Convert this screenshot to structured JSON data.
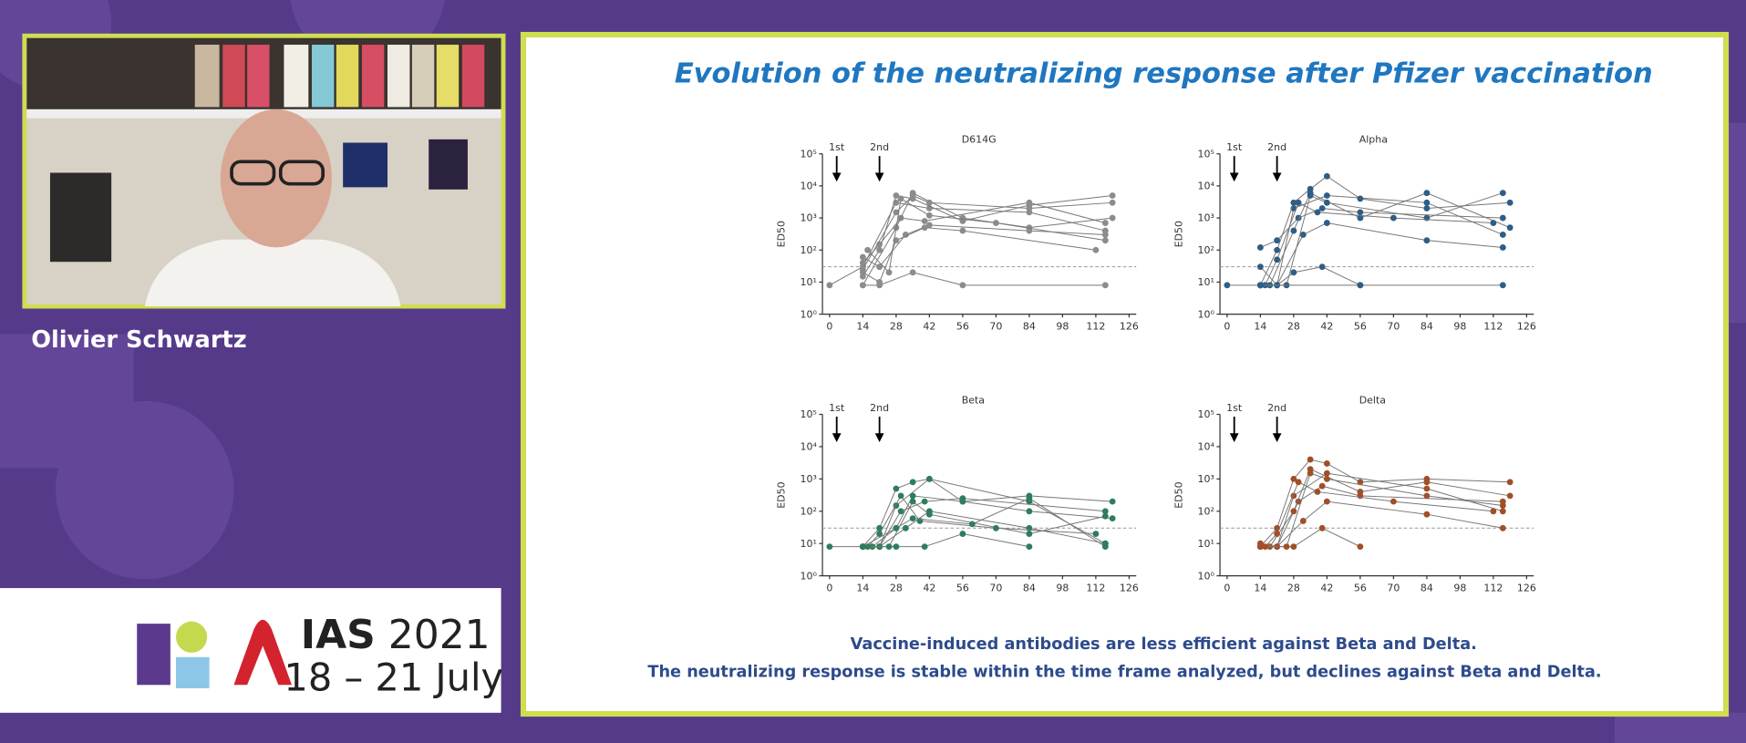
{
  "speaker": {
    "name": "Olivier Schwartz"
  },
  "logo": {
    "name": "IAS",
    "year": "2021",
    "dates": "18 – 21 July"
  },
  "slide": {
    "title": "Evolution of the neutralizing response after Pfizer vaccination",
    "notes": [
      "Vaccine-induced antibodies are less efficient against Beta and Delta.",
      "The neutralizing response is stable within the time frame analyzed, but declines against Beta and Delta."
    ]
  },
  "chart_data": [
    {
      "type": "line",
      "title": "D614G",
      "ylabel": "ED50",
      "color": "#8c8c8c",
      "y_scale": "log",
      "threshold": 30,
      "xlim": [
        -3,
        129
      ],
      "xticks": [
        0,
        14,
        28,
        42,
        56,
        70,
        84,
        98,
        112,
        126
      ],
      "ylim": [
        1,
        100000
      ],
      "yticks": [
        {
          "value": 1,
          "label": "10⁰"
        },
        {
          "value": 10,
          "label": "10¹"
        },
        {
          "value": 100,
          "label": "10²"
        },
        {
          "value": 1000,
          "label": "10³"
        },
        {
          "value": 10000,
          "label": "10⁴"
        },
        {
          "value": 100000,
          "label": "10⁵"
        }
      ],
      "annotations": [
        {
          "text": "1st",
          "x": 3
        },
        {
          "text": "2nd",
          "x": 21
        }
      ],
      "series": [
        {
          "x": [
            0,
            14,
            28,
            42,
            84,
            116
          ],
          "values": [
            8,
            30,
            3000,
            2000,
            1500,
            400
          ]
        },
        {
          "x": [
            14,
            21,
            28,
            35,
            56,
            84,
            119
          ],
          "values": [
            15,
            100,
            5000,
            4000,
            800,
            2500,
            5000
          ]
        },
        {
          "x": [
            14,
            21,
            30,
            40,
            84,
            116
          ],
          "values": [
            40,
            150,
            1000,
            800,
            3000,
            700
          ]
        },
        {
          "x": [
            14,
            28,
            35,
            56,
            84,
            119
          ],
          "values": [
            8,
            500,
            6000,
            1000,
            500,
            1000
          ]
        },
        {
          "x": [
            14,
            21,
            32,
            42,
            84,
            116
          ],
          "values": [
            60,
            30,
            300,
            600,
            400,
            300
          ]
        },
        {
          "x": [
            14,
            21,
            28,
            40,
            56,
            112
          ],
          "values": [
            20,
            10,
            200,
            500,
            400,
            100
          ]
        },
        {
          "x": [
            14,
            21,
            35,
            56,
            116
          ],
          "values": [
            8,
            8,
            20,
            8,
            8
          ]
        },
        {
          "x": [
            14,
            28,
            35,
            42,
            84,
            119
          ],
          "values": [
            25,
            1500,
            5000,
            3000,
            2000,
            3000
          ]
        },
        {
          "x": [
            16,
            25,
            30,
            42,
            70,
            116
          ],
          "values": [
            100,
            20,
            4000,
            1200,
            700,
            200
          ]
        }
      ]
    },
    {
      "type": "line",
      "title": "Alpha",
      "ylabel": "ED50",
      "color": "#2f5d85",
      "y_scale": "log",
      "threshold": 30,
      "xlim": [
        -3,
        129
      ],
      "xticks": [
        0,
        14,
        28,
        42,
        56,
        70,
        84,
        98,
        112,
        126
      ],
      "ylim": [
        1,
        100000
      ],
      "yticks": [
        {
          "value": 1,
          "label": "10⁰"
        },
        {
          "value": 10,
          "label": "10¹"
        },
        {
          "value": 100,
          "label": "10²"
        },
        {
          "value": 1000,
          "label": "10³"
        },
        {
          "value": 10000,
          "label": "10⁴"
        },
        {
          "value": 100000,
          "label": "10⁵"
        }
      ],
      "annotations": [
        {
          "text": "1st",
          "x": 3
        },
        {
          "text": "2nd",
          "x": 21
        }
      ],
      "series": [
        {
          "x": [
            0,
            14,
            21,
            28,
            42,
            84,
            116
          ],
          "values": [
            8,
            8,
            8,
            2000,
            5000,
            3000,
            300
          ]
        },
        {
          "x": [
            14,
            21,
            28,
            35,
            42,
            56,
            84,
            119
          ],
          "values": [
            8,
            100,
            3000,
            8000,
            20000,
            4000,
            2000,
            3000
          ]
        },
        {
          "x": [
            14,
            21,
            30,
            40,
            56,
            116
          ],
          "values": [
            120,
            200,
            1000,
            2000,
            1500,
            1000
          ]
        },
        {
          "x": [
            14,
            18,
            28,
            35,
            56,
            84,
            119
          ],
          "values": [
            8,
            8,
            400,
            6000,
            1000,
            6000,
            500
          ]
        },
        {
          "x": [
            14,
            21,
            32,
            42,
            84,
            116
          ],
          "values": [
            30,
            8,
            300,
            700,
            200,
            120
          ]
        },
        {
          "x": [
            14,
            21,
            28,
            40,
            56
          ],
          "values": [
            8,
            8,
            20,
            30,
            8
          ]
        },
        {
          "x": [
            14,
            25,
            35,
            42,
            84,
            116
          ],
          "values": [
            8,
            8,
            5000,
            3000,
            1000,
            6000
          ]
        },
        {
          "x": [
            16,
            21,
            30,
            38,
            70,
            112
          ],
          "values": [
            8,
            50,
            3000,
            1500,
            1000,
            700
          ]
        },
        {
          "x": [
            14,
            56,
            116
          ],
          "values": [
            8,
            8,
            8
          ]
        }
      ]
    },
    {
      "type": "line",
      "title": "Beta",
      "ylabel": "ED50",
      "color": "#2e7d5c",
      "y_scale": "log",
      "threshold": 30,
      "xlim": [
        -3,
        129
      ],
      "xticks": [
        0,
        14,
        28,
        42,
        56,
        70,
        84,
        98,
        112,
        126
      ],
      "ylim": [
        1,
        100000
      ],
      "yticks": [
        {
          "value": 1,
          "label": "10⁰"
        },
        {
          "value": 10,
          "label": "10¹"
        },
        {
          "value": 100,
          "label": "10²"
        },
        {
          "value": 1000,
          "label": "10³"
        },
        {
          "value": 10000,
          "label": "10⁴"
        },
        {
          "value": 100000,
          "label": "10⁵"
        }
      ],
      "annotations": [
        {
          "text": "1st",
          "x": 3
        },
        {
          "text": "2nd",
          "x": 21
        }
      ],
      "series": [
        {
          "x": [
            0,
            14,
            21,
            28,
            42,
            84,
            116
          ],
          "values": [
            8,
            8,
            8,
            150,
            1000,
            200,
            10
          ]
        },
        {
          "x": [
            14,
            21,
            28,
            35,
            42,
            56,
            84,
            119
          ],
          "values": [
            8,
            30,
            500,
            800,
            1000,
            200,
            300,
            200
          ]
        },
        {
          "x": [
            14,
            21,
            30,
            40,
            56,
            116
          ],
          "values": [
            8,
            8,
            100,
            200,
            250,
            100
          ]
        },
        {
          "x": [
            14,
            18,
            28,
            35,
            56,
            84,
            119
          ],
          "values": [
            8,
            8,
            30,
            300,
            200,
            100,
            60
          ]
        },
        {
          "x": [
            14,
            21,
            32,
            42,
            84,
            116
          ],
          "values": [
            8,
            8,
            30,
            100,
            30,
            10
          ]
        },
        {
          "x": [
            14,
            21,
            28,
            40,
            56,
            84
          ],
          "values": [
            8,
            8,
            8,
            8,
            20,
            8
          ]
        },
        {
          "x": [
            14,
            25,
            35,
            42,
            84,
            116
          ],
          "values": [
            8,
            8,
            200,
            80,
            20,
            70
          ]
        },
        {
          "x": [
            16,
            21,
            30,
            38,
            70,
            112
          ],
          "values": [
            8,
            20,
            300,
            50,
            30,
            20
          ]
        },
        {
          "x": [
            14,
            28,
            35,
            60,
            84,
            116
          ],
          "values": [
            8,
            30,
            60,
            40,
            250,
            8
          ]
        }
      ]
    },
    {
      "type": "line",
      "title": "Delta",
      "ylabel": "ED50",
      "color": "#a04f28",
      "y_scale": "log",
      "threshold": 30,
      "xlim": [
        -3,
        129
      ],
      "xticks": [
        0,
        14,
        28,
        42,
        56,
        70,
        84,
        98,
        112,
        126
      ],
      "ylim": [
        1,
        100000
      ],
      "yticks": [
        {
          "value": 1,
          "label": "10⁰"
        },
        {
          "value": 10,
          "label": "10¹"
        },
        {
          "value": 100,
          "label": "10²"
        },
        {
          "value": 1000,
          "label": "10³"
        },
        {
          "value": 10000,
          "label": "10⁴"
        },
        {
          "value": 100000,
          "label": "10⁵"
        }
      ],
      "annotations": [
        {
          "text": "1st",
          "x": 3
        },
        {
          "text": "2nd",
          "x": 21
        }
      ],
      "series": [
        {
          "x": [
            14,
            21,
            28,
            42,
            84,
            116
          ],
          "values": [
            8,
            8,
            300,
            1500,
            500,
            100
          ]
        },
        {
          "x": [
            14,
            21,
            28,
            35,
            42,
            56,
            84,
            119
          ],
          "values": [
            8,
            30,
            1000,
            4000,
            3000,
            800,
            1000,
            800
          ]
        },
        {
          "x": [
            14,
            21,
            30,
            40,
            56,
            116
          ],
          "values": [
            8,
            8,
            200,
            600,
            300,
            200
          ]
        },
        {
          "x": [
            14,
            18,
            28,
            35,
            56,
            84,
            119
          ],
          "values": [
            8,
            8,
            100,
            2000,
            400,
            800,
            300
          ]
        },
        {
          "x": [
            14,
            21,
            32,
            42,
            84,
            116
          ],
          "values": [
            10,
            8,
            50,
            200,
            80,
            30
          ]
        },
        {
          "x": [
            14,
            21,
            28,
            40,
            56
          ],
          "values": [
            8,
            8,
            8,
            30,
            8
          ]
        },
        {
          "x": [
            14,
            25,
            35,
            42,
            84,
            116
          ],
          "values": [
            8,
            8,
            1500,
            1000,
            300,
            150
          ]
        },
        {
          "x": [
            16,
            21,
            30,
            38,
            70,
            112
          ],
          "values": [
            8,
            20,
            800,
            400,
            200,
            100
          ]
        }
      ]
    }
  ]
}
